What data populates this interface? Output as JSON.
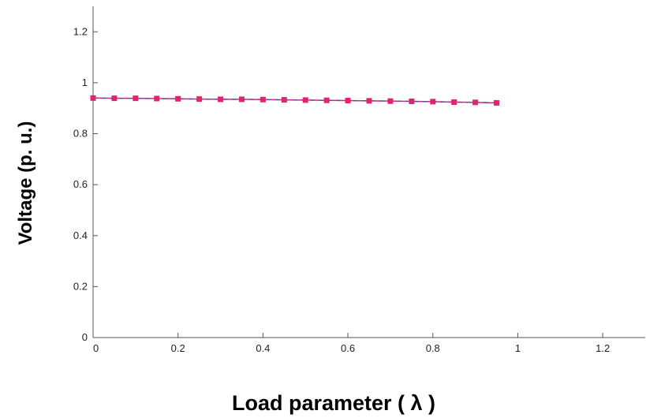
{
  "chart_data": {
    "type": "line",
    "xlabel": "Load parameter ( λ )",
    "ylabel": "Voltage (p. u.)",
    "xlim": [
      0,
      1.3
    ],
    "ylim": [
      0,
      1.3
    ],
    "x_ticks": [
      "0",
      "0.2",
      "0.4",
      "0.6",
      "0.8",
      "1",
      "1.2"
    ],
    "y_ticks": [
      "0",
      "0.2",
      "0.4",
      "0.6",
      "0.8",
      "1",
      "1.2"
    ],
    "grid": false,
    "series": [
      {
        "color": "#e0246e",
        "line_color": "#4a4fa8",
        "marker": "square",
        "x": [
          0,
          0.05,
          0.1,
          0.15,
          0.2,
          0.25,
          0.3,
          0.35,
          0.4,
          0.45,
          0.5,
          0.55,
          0.6,
          0.65,
          0.7,
          0.75,
          0.8,
          0.85,
          0.9,
          0.95
        ],
        "y": [
          0.94,
          0.939,
          0.939,
          0.938,
          0.937,
          0.936,
          0.935,
          0.935,
          0.934,
          0.933,
          0.932,
          0.931,
          0.93,
          0.929,
          0.928,
          0.927,
          0.926,
          0.924,
          0.923,
          0.921
        ]
      }
    ]
  }
}
